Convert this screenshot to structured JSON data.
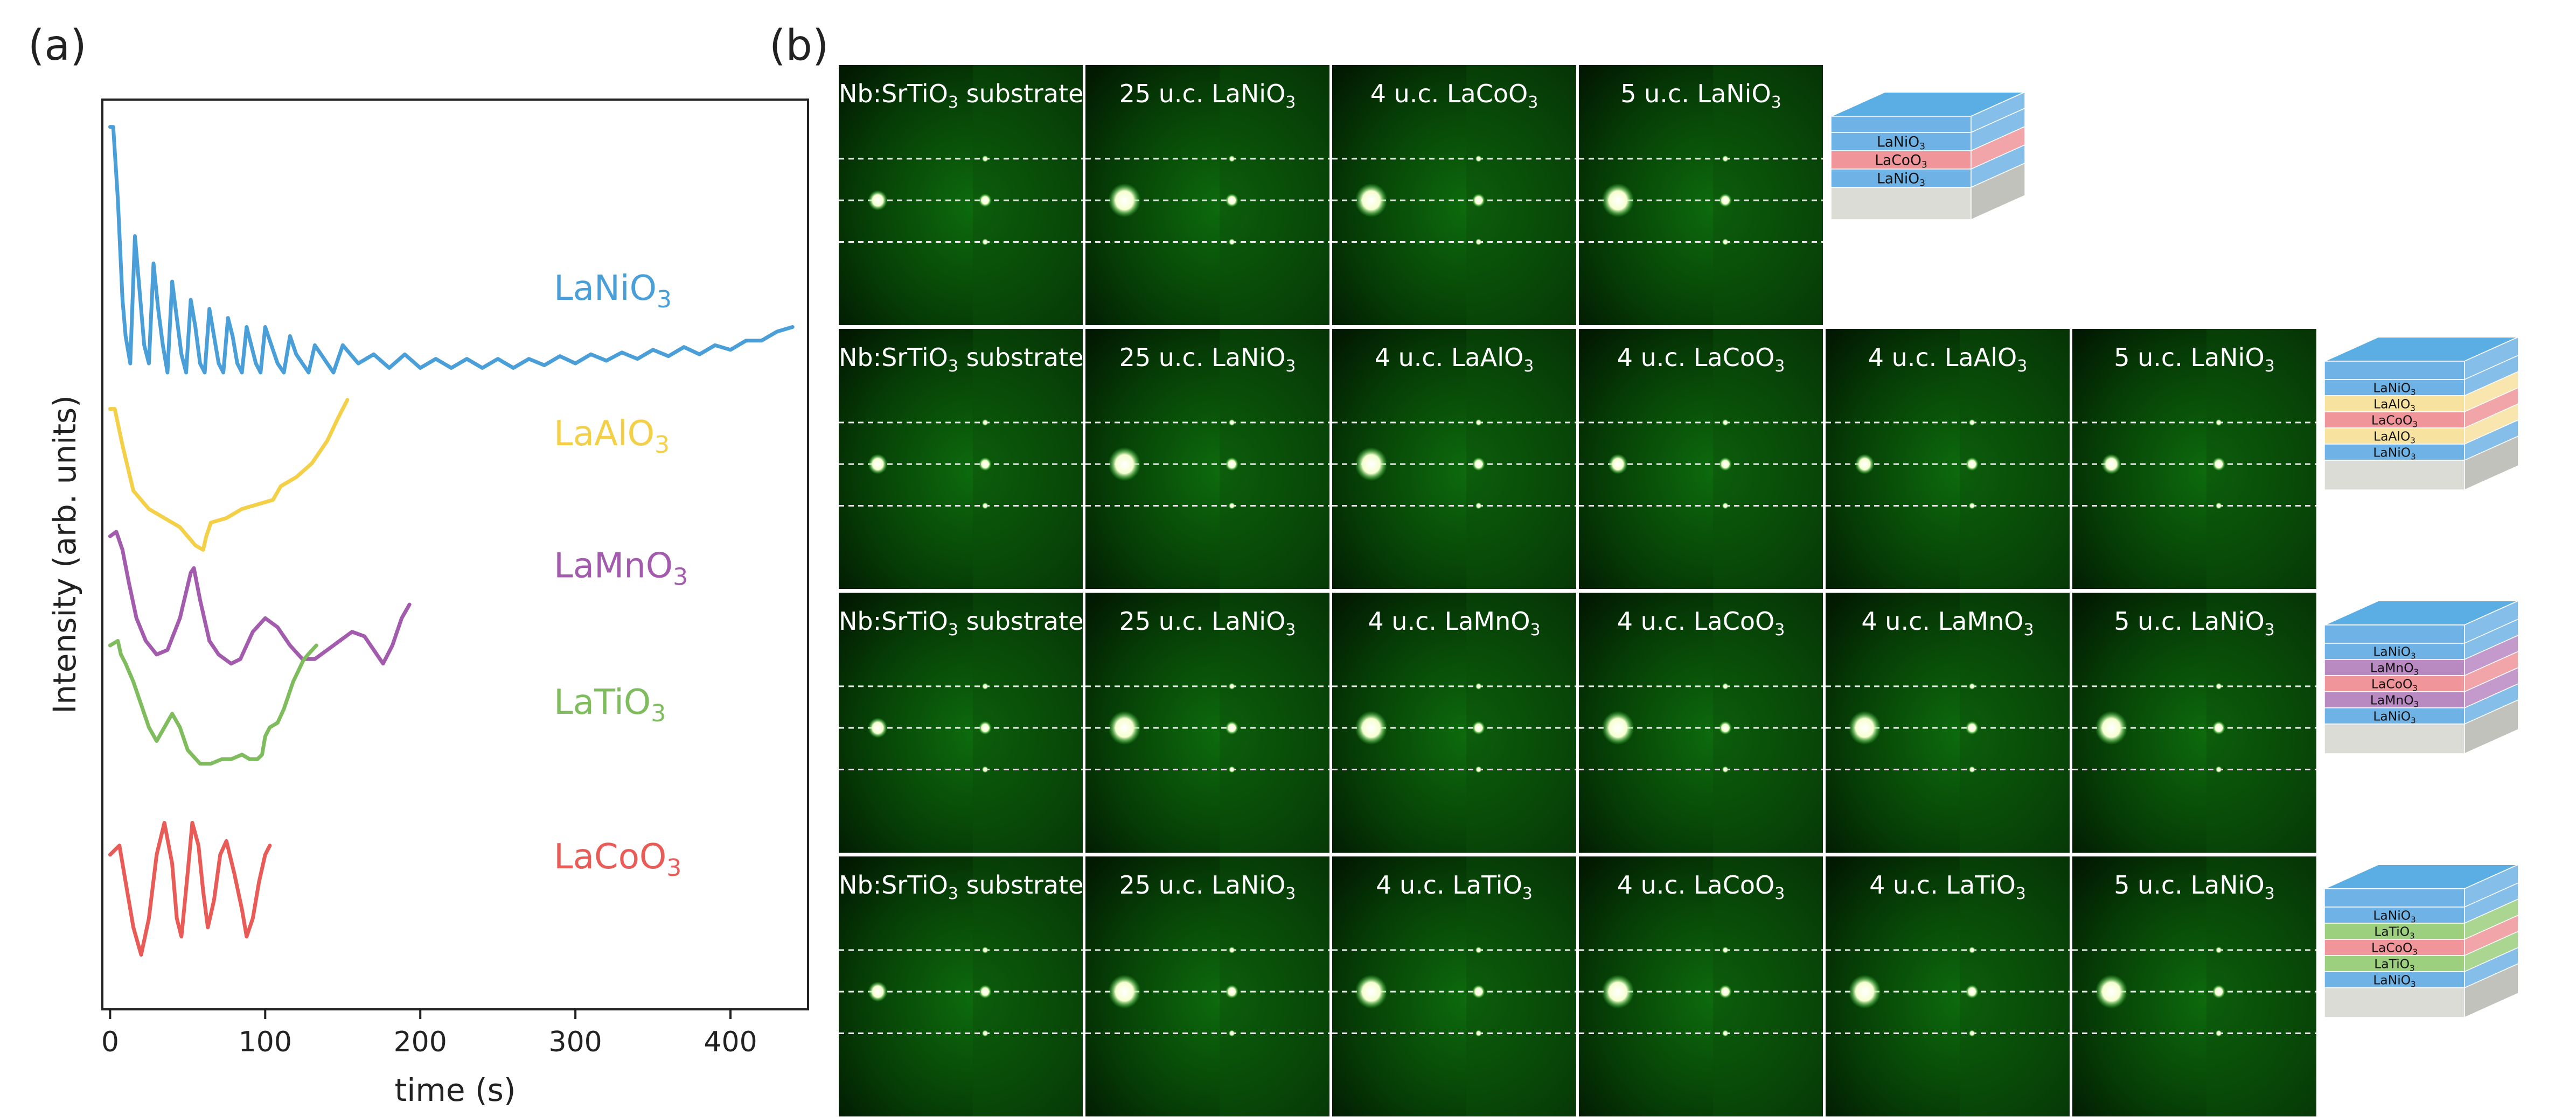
{
  "panels": {
    "a": "(a)",
    "b": "(b)"
  },
  "chart_data": {
    "type": "line",
    "xlabel": "time (s)",
    "ylabel": "Intensity (arb. units)",
    "xlim": [
      -5,
      450
    ],
    "xticks": [
      0,
      100,
      200,
      300,
      400
    ],
    "ylim": [
      0,
      100
    ],
    "y_tick_labels": "none",
    "grid": false,
    "series": [
      {
        "name": "LaNiO3",
        "color": "#4a9fd8",
        "period": 12,
        "t_end": 440,
        "points": [
          [
            0,
            97
          ],
          [
            2,
            97
          ],
          [
            5,
            89
          ],
          [
            8,
            78
          ],
          [
            10,
            74
          ],
          [
            13,
            71
          ],
          [
            16,
            85
          ],
          [
            19,
            79
          ],
          [
            22,
            73
          ],
          [
            25,
            71
          ],
          [
            28,
            82
          ],
          [
            31,
            77
          ],
          [
            34,
            73
          ],
          [
            37,
            70
          ],
          [
            40,
            80
          ],
          [
            43,
            76
          ],
          [
            46,
            72
          ],
          [
            49,
            70
          ],
          [
            52,
            78
          ],
          [
            55,
            75
          ],
          [
            58,
            71
          ],
          [
            61,
            70
          ],
          [
            64,
            77
          ],
          [
            67,
            74
          ],
          [
            70,
            71
          ],
          [
            73,
            70
          ],
          [
            76,
            76
          ],
          [
            79,
            74
          ],
          [
            82,
            71
          ],
          [
            85,
            70
          ],
          [
            88,
            75
          ],
          [
            91,
            73
          ],
          [
            94,
            71
          ],
          [
            97,
            70
          ],
          [
            100,
            75
          ],
          [
            104,
            73
          ],
          [
            108,
            71
          ],
          [
            112,
            70
          ],
          [
            116,
            74
          ],
          [
            120,
            72
          ],
          [
            124,
            71
          ],
          [
            128,
            70
          ],
          [
            132,
            73
          ],
          [
            136,
            72
          ],
          [
            140,
            71
          ],
          [
            144,
            70
          ],
          [
            150,
            73
          ],
          [
            160,
            71
          ],
          [
            170,
            72
          ],
          [
            180,
            70.5
          ],
          [
            190,
            72
          ],
          [
            200,
            70.5
          ],
          [
            210,
            71.5
          ],
          [
            220,
            70.5
          ],
          [
            230,
            71.5
          ],
          [
            240,
            70.5
          ],
          [
            250,
            71.5
          ],
          [
            260,
            70.5
          ],
          [
            270,
            71.5
          ],
          [
            280,
            70.8
          ],
          [
            290,
            71.8
          ],
          [
            300,
            71
          ],
          [
            310,
            72
          ],
          [
            320,
            71.3
          ],
          [
            330,
            72.2
          ],
          [
            340,
            71.5
          ],
          [
            350,
            72.5
          ],
          [
            360,
            71.8
          ],
          [
            370,
            72.8
          ],
          [
            380,
            72
          ],
          [
            390,
            73
          ],
          [
            400,
            72.5
          ],
          [
            410,
            73.5
          ],
          [
            420,
            73.5
          ],
          [
            430,
            74.5
          ],
          [
            440,
            75
          ]
        ]
      },
      {
        "name": "LaAlO3",
        "color": "#f4cf48",
        "t_end": 153,
        "points": [
          [
            0,
            66
          ],
          [
            3,
            66
          ],
          [
            8,
            62
          ],
          [
            15,
            57
          ],
          [
            25,
            55
          ],
          [
            35,
            54
          ],
          [
            45,
            53
          ],
          [
            55,
            51
          ],
          [
            60,
            50.5
          ],
          [
            62,
            52
          ],
          [
            65,
            53.5
          ],
          [
            75,
            54
          ],
          [
            85,
            55
          ],
          [
            95,
            55.5
          ],
          [
            105,
            56
          ],
          [
            110,
            57.5
          ],
          [
            115,
            58
          ],
          [
            120,
            58.5
          ],
          [
            130,
            60
          ],
          [
            140,
            62.5
          ],
          [
            147,
            65
          ],
          [
            153,
            67
          ]
        ]
      },
      {
        "name": "LaMnO3",
        "color": "#a35cad",
        "t_end": 193,
        "points": [
          [
            0,
            52
          ],
          [
            4,
            52.5
          ],
          [
            8,
            50.5
          ],
          [
            12,
            47
          ],
          [
            17,
            43
          ],
          [
            23,
            40.5
          ],
          [
            30,
            39
          ],
          [
            37,
            39.5
          ],
          [
            45,
            43
          ],
          [
            52,
            48
          ],
          [
            54,
            48.5
          ],
          [
            58,
            45
          ],
          [
            64,
            40.5
          ],
          [
            70,
            39
          ],
          [
            78,
            38
          ],
          [
            84,
            38.5
          ],
          [
            92,
            41.5
          ],
          [
            100,
            43
          ],
          [
            108,
            42
          ],
          [
            116,
            40
          ],
          [
            124,
            38.5
          ],
          [
            132,
            38.5
          ],
          [
            140,
            39.5
          ],
          [
            148,
            40.5
          ],
          [
            156,
            41.5
          ],
          [
            164,
            41
          ],
          [
            170,
            39.5
          ],
          [
            176,
            38
          ],
          [
            182,
            40
          ],
          [
            188,
            43
          ],
          [
            193,
            44.5
          ]
        ]
      },
      {
        "name": "LaTiO3",
        "color": "#7fbc5d",
        "t_end": 133,
        "points": [
          [
            0,
            40
          ],
          [
            5,
            40.5
          ],
          [
            7,
            39
          ],
          [
            10,
            38
          ],
          [
            15,
            36
          ],
          [
            20,
            33.5
          ],
          [
            25,
            31
          ],
          [
            30,
            29.5
          ],
          [
            35,
            31
          ],
          [
            40,
            32.5
          ],
          [
            45,
            31
          ],
          [
            50,
            28.5
          ],
          [
            58,
            27
          ],
          [
            65,
            27
          ],
          [
            72,
            27.5
          ],
          [
            78,
            27.5
          ],
          [
            85,
            28
          ],
          [
            90,
            27.5
          ],
          [
            95,
            27.5
          ],
          [
            98,
            28
          ],
          [
            100,
            30
          ],
          [
            103,
            31
          ],
          [
            108,
            31.5
          ],
          [
            112,
            33
          ],
          [
            118,
            36
          ],
          [
            125,
            38.5
          ],
          [
            133,
            40
          ]
        ]
      },
      {
        "name": "LaCoO3",
        "color": "#e85b57",
        "t_end": 103,
        "points": [
          [
            0,
            17
          ],
          [
            3,
            17.5
          ],
          [
            6,
            18
          ],
          [
            10,
            14
          ],
          [
            15,
            9
          ],
          [
            20,
            6
          ],
          [
            25,
            10
          ],
          [
            30,
            17
          ],
          [
            35,
            20.5
          ],
          [
            40,
            16
          ],
          [
            43,
            10
          ],
          [
            46,
            8
          ],
          [
            50,
            15
          ],
          [
            53,
            20.5
          ],
          [
            57,
            18
          ],
          [
            60,
            13
          ],
          [
            63,
            9
          ],
          [
            67,
            12
          ],
          [
            71,
            17
          ],
          [
            75,
            18.5
          ],
          [
            80,
            15
          ],
          [
            85,
            11
          ],
          [
            88,
            8
          ],
          [
            92,
            10
          ],
          [
            96,
            14
          ],
          [
            100,
            17
          ],
          [
            103,
            18
          ]
        ]
      }
    ],
    "label_positions_note": "series names printed to the right of each curve"
  },
  "stack_labels": {
    "LaNiO3": "LaNiO",
    "LaCoO3": "LaCoO",
    "LaAlO3": "LaAlO",
    "LaMnO3": "LaMnO",
    "LaTiO3": "LaTiO"
  },
  "rheed": {
    "rows": [
      {
        "tiles": [
          {
            "label": "Nb:SrTiO",
            "sub": "3",
            "suffix": " substrate"
          },
          {
            "label": "25 u.c. LaNiO",
            "sub": "3",
            "suffix": ""
          },
          {
            "label": "4 u.c. LaCoO",
            "sub": "3",
            "suffix": ""
          },
          {
            "label": "5 u.c. LaNiO",
            "sub": "3",
            "suffix": ""
          }
        ],
        "stack": [
          {
            "name": "LaNiO",
            "sub": "3",
            "color": "#6fb3e6"
          },
          {
            "name": "LaCoO",
            "sub": "3",
            "color": "#f0969a"
          },
          {
            "name": "LaNiO",
            "sub": "3",
            "color": "#6fb3e6"
          }
        ]
      },
      {
        "tiles": [
          {
            "label": "Nb:SrTiO",
            "sub": "3",
            "suffix": " substrate"
          },
          {
            "label": "25 u.c. LaNiO",
            "sub": "3",
            "suffix": ""
          },
          {
            "label": "4 u.c. LaAlO",
            "sub": "3",
            "suffix": ""
          },
          {
            "label": "4 u.c. LaCoO",
            "sub": "3",
            "suffix": ""
          },
          {
            "label": "4 u.c. LaAlO",
            "sub": "3",
            "suffix": ""
          },
          {
            "label": "5 u.c. LaNiO",
            "sub": "3",
            "suffix": ""
          }
        ],
        "stack": [
          {
            "name": "LaNiO",
            "sub": "3",
            "color": "#6fb3e6"
          },
          {
            "name": "LaAlO",
            "sub": "3",
            "color": "#f7e2a0"
          },
          {
            "name": "LaCoO",
            "sub": "3",
            "color": "#f0969a"
          },
          {
            "name": "LaAlO",
            "sub": "3",
            "color": "#f7e2a0"
          },
          {
            "name": "LaNiO",
            "sub": "3",
            "color": "#6fb3e6"
          }
        ]
      },
      {
        "tiles": [
          {
            "label": "Nb:SrTiO",
            "sub": "3",
            "suffix": " substrate"
          },
          {
            "label": "25 u.c. LaNiO",
            "sub": "3",
            "suffix": ""
          },
          {
            "label": "4 u.c. LaMnO",
            "sub": "3",
            "suffix": ""
          },
          {
            "label": "4 u.c. LaCoO",
            "sub": "3",
            "suffix": ""
          },
          {
            "label": "4 u.c. LaMnO",
            "sub": "3",
            "suffix": ""
          },
          {
            "label": "5 u.c. LaNiO",
            "sub": "3",
            "suffix": ""
          }
        ],
        "stack": [
          {
            "name": "LaNiO",
            "sub": "3",
            "color": "#6fb3e6"
          },
          {
            "name": "LaMnO",
            "sub": "3",
            "color": "#b989c2"
          },
          {
            "name": "LaCoO",
            "sub": "3",
            "color": "#f0969a"
          },
          {
            "name": "LaMnO",
            "sub": "3",
            "color": "#b989c2"
          },
          {
            "name": "LaNiO",
            "sub": "3",
            "color": "#6fb3e6"
          }
        ]
      },
      {
        "tiles": [
          {
            "label": "Nb:SrTiO",
            "sub": "3",
            "suffix": " substrate"
          },
          {
            "label": "25 u.c. LaNiO",
            "sub": "3",
            "suffix": ""
          },
          {
            "label": "4 u.c. LaTiO",
            "sub": "3",
            "suffix": ""
          },
          {
            "label": "4 u.c. LaCoO",
            "sub": "3",
            "suffix": ""
          },
          {
            "label": "4 u.c. LaTiO",
            "sub": "3",
            "suffix": ""
          },
          {
            "label": "5 u.c. LaNiO",
            "sub": "3",
            "suffix": ""
          }
        ],
        "stack": [
          {
            "name": "LaNiO",
            "sub": "3",
            "color": "#6fb3e6"
          },
          {
            "name": "LaTiO",
            "sub": "3",
            "color": "#9ccf7e"
          },
          {
            "name": "LaCoO",
            "sub": "3",
            "color": "#f0969a"
          },
          {
            "name": "LaTiO",
            "sub": "3",
            "color": "#9ccf7e"
          },
          {
            "name": "LaNiO",
            "sub": "3",
            "color": "#6fb3e6"
          }
        ]
      }
    ],
    "colors": {
      "background": "#000000",
      "green": "#19c419",
      "spot": "#ffffff",
      "substrate": "#d9d9d4",
      "top": "#5aaee3"
    }
  }
}
